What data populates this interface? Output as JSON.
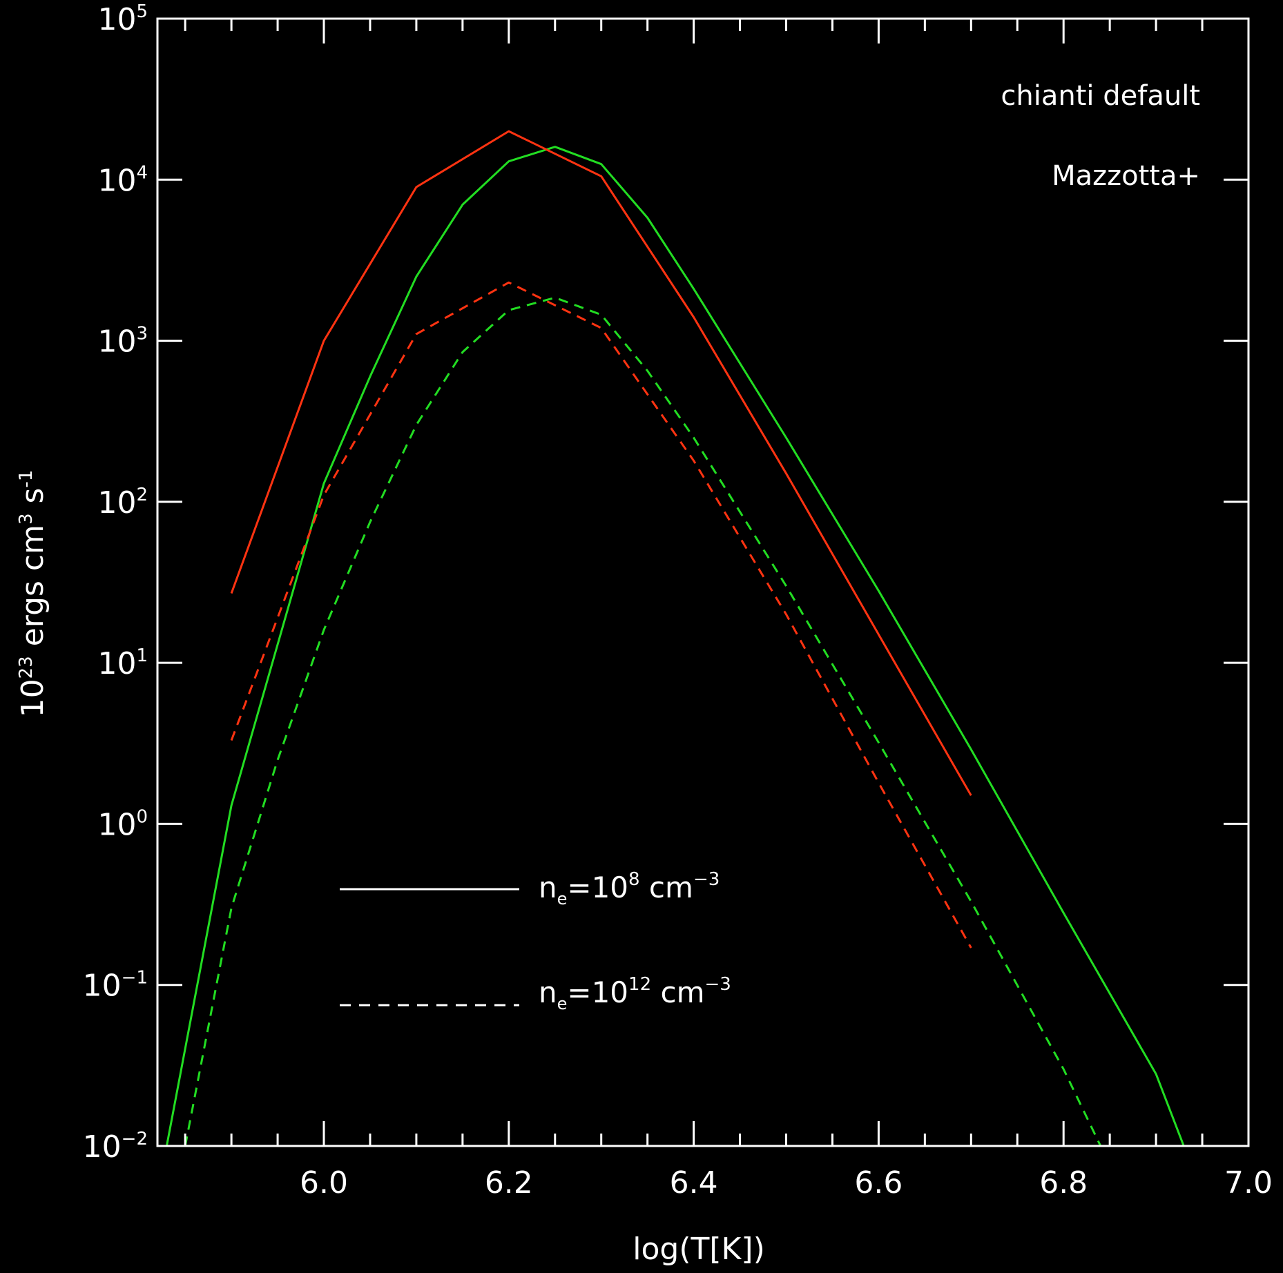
{
  "chart_data": {
    "type": "line",
    "xlabel": "log(T[K])",
    "ylabel": {
      "base": "10",
      "exp": "23",
      "rest": " ergs cm",
      "exp2": "3",
      "rest2": " s",
      "exp3": "-1"
    },
    "xlim": [
      5.82,
      7.0
    ],
    "ylim": [
      0.01,
      100000
    ],
    "yscale": "log",
    "x_ticks": [
      "6.0",
      "6.2",
      "6.4",
      "6.6",
      "6.8",
      "7.0"
    ],
    "x_tick_values": [
      6.0,
      6.2,
      6.4,
      6.6,
      6.8,
      7.0
    ],
    "y_ticks": [
      {
        "value": 0.01,
        "base": "10",
        "exp": "−2"
      },
      {
        "value": 0.1,
        "base": "10",
        "exp": "−1"
      },
      {
        "value": 1,
        "base": "10",
        "exp": "0"
      },
      {
        "value": 10,
        "base": "10",
        "exp": "1"
      },
      {
        "value": 100,
        "base": "10",
        "exp": "2"
      },
      {
        "value": 1000,
        "base": "10",
        "exp": "3"
      },
      {
        "value": 10000,
        "base": "10",
        "exp": "4"
      },
      {
        "value": 100000,
        "base": "10",
        "exp": "5"
      }
    ],
    "series": [
      {
        "name": "chianti default",
        "color": "#22dd22",
        "dash": false,
        "x": [
          5.83,
          5.9,
          6.0,
          6.05,
          6.1,
          6.15,
          6.2,
          6.25,
          6.3,
          6.35,
          6.4,
          6.5,
          6.6,
          6.7,
          6.8,
          6.9,
          6.93
        ],
        "y": [
          0.01,
          1.3,
          130,
          600,
          2500,
          7000,
          13000,
          16000,
          12500,
          5800,
          2100,
          250,
          28,
          2.9,
          0.28,
          0.028,
          0.01
        ]
      },
      {
        "name": "Mazzotta+",
        "color": "#ff3311",
        "dash": false,
        "x": [
          5.9,
          6.0,
          6.1,
          6.2,
          6.3,
          6.4,
          6.5,
          6.6,
          6.7
        ],
        "y": [
          27,
          1000,
          9000,
          20000,
          10500,
          1400,
          150,
          15,
          1.5
        ]
      },
      {
        "name": "chianti default",
        "color": "#22dd22",
        "dash": true,
        "x": [
          5.85,
          5.9,
          5.95,
          6.0,
          6.05,
          6.1,
          6.15,
          6.2,
          6.25,
          6.3,
          6.35,
          6.4,
          6.5,
          6.6,
          6.7,
          6.8,
          6.84
        ],
        "y": [
          0.01,
          0.3,
          2.5,
          16,
          75,
          300,
          850,
          1550,
          1850,
          1450,
          650,
          250,
          30,
          3.2,
          0.33,
          0.03,
          0.01
        ]
      },
      {
        "name": "Mazzotta+",
        "color": "#ff3311",
        "dash": true,
        "x": [
          5.9,
          6.0,
          6.1,
          6.2,
          6.3,
          6.4,
          6.5,
          6.6,
          6.7
        ],
        "y": [
          3.3,
          110,
          1100,
          2300,
          1200,
          180,
          20,
          1.8,
          0.17
        ]
      }
    ],
    "legend_colors": [
      {
        "label": "chianti default",
        "color": "#22dd22"
      },
      {
        "label": "Mazzotta+",
        "color": "#ff3311"
      }
    ],
    "legend_placement": "top-right",
    "annotations": [
      {
        "style": "solid",
        "prefix": "n",
        "sub": "e",
        "mid": "=10",
        "exp": "8",
        "rest": " cm",
        "exp2": "−3"
      },
      {
        "style": "dashed",
        "prefix": "n",
        "sub": "e",
        "mid": "=10",
        "exp": "12",
        "rest": " cm",
        "exp2": "−3"
      }
    ],
    "grid": false
  }
}
